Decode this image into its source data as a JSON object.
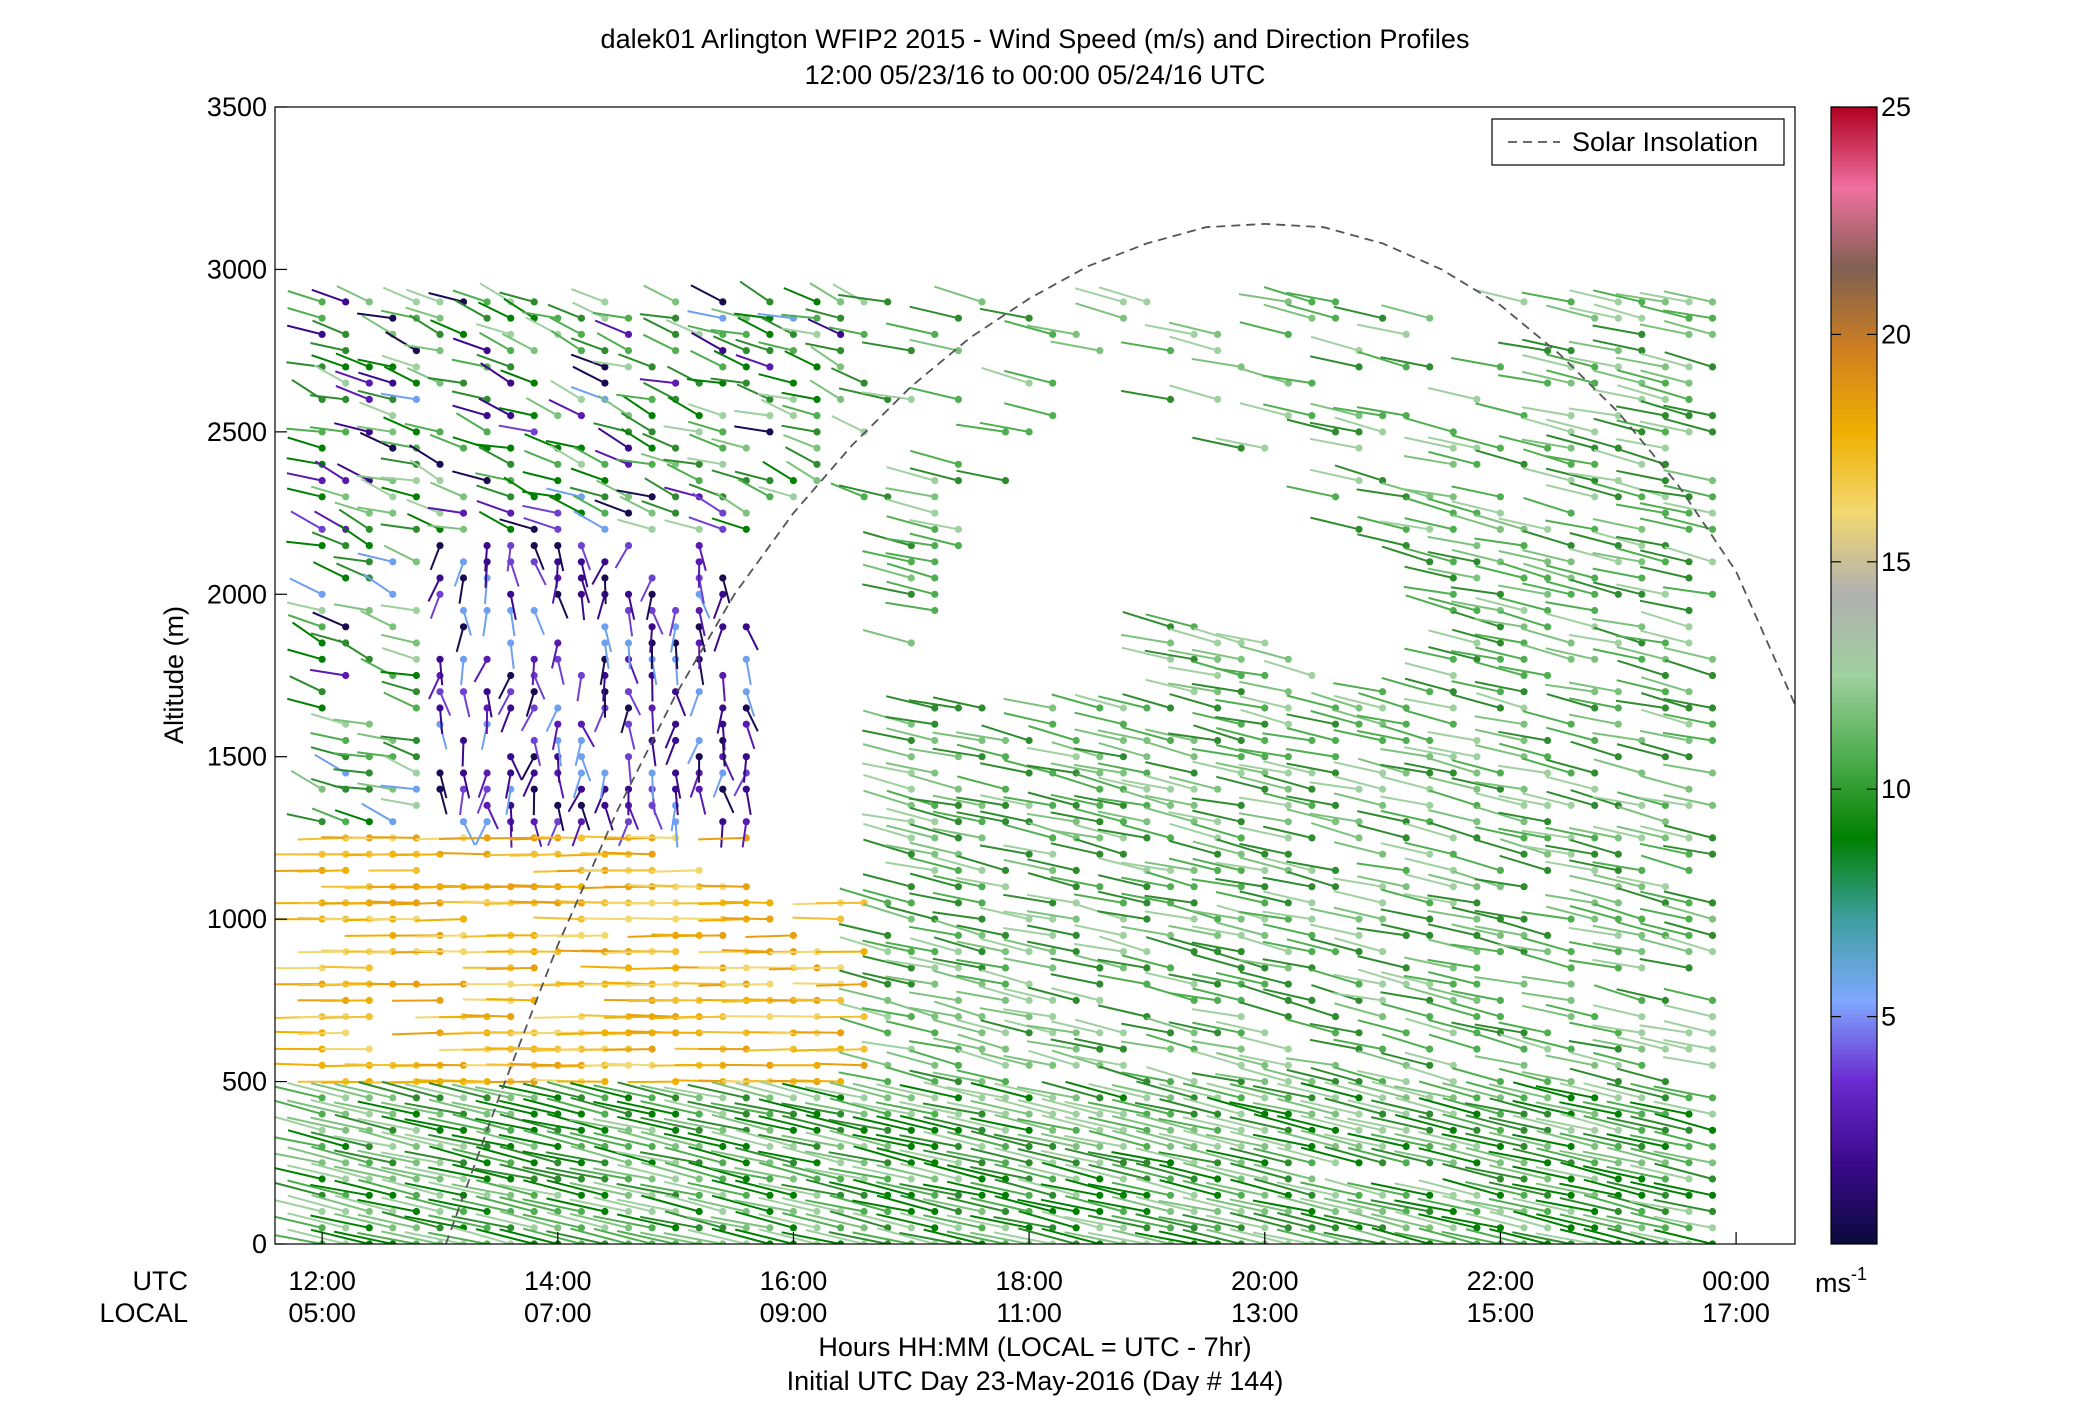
{
  "title": {
    "line1": "dalek01 Arlington WFIP2 2015 - Wind Speed (m/s) and Direction Profiles",
    "line2": "12:00 05/23/16 to 00:00 05/24/16  UTC"
  },
  "axes": {
    "ylabel": "Altitude (m)",
    "x_row_labels": [
      "UTC",
      "LOCAL"
    ],
    "xlabel_line1": "Hours HH:MM  (LOCAL = UTC - 7hr)",
    "xlabel_line2": "Initial UTC Day 23-May-2016 (Day # 144)",
    "colorbar_unit": "ms",
    "colorbar_unit_exp": "-1"
  },
  "legend": {
    "label": "Solar Insolation"
  },
  "chart_data": {
    "type": "scatter",
    "subtype": "wind-barb-profile",
    "x_range_hours_utc": [
      11.6,
      24.5
    ],
    "ylim": [
      0,
      3500
    ],
    "y_ticks": [
      0,
      500,
      1000,
      1500,
      2000,
      2500,
      3000,
      3500
    ],
    "y_tick_labels": [
      "0",
      "500",
      "1000",
      "1500",
      "2000",
      "2500",
      "3000",
      "3500"
    ],
    "x_ticks_utc": [
      12,
      14,
      16,
      18,
      20,
      22,
      24
    ],
    "x_tick_labels_utc": [
      "12:00",
      "14:00",
      "16:00",
      "18:00",
      "20:00",
      "22:00",
      "00:00"
    ],
    "x_tick_labels_local": [
      "05:00",
      "07:00",
      "09:00",
      "11:00",
      "13:00",
      "15:00",
      "17:00"
    ],
    "colorbar": {
      "range": [
        0,
        25
      ],
      "ticks": [
        5,
        10,
        15,
        20,
        25
      ],
      "tick_labels": [
        "5",
        "10",
        "15",
        "20",
        "25"
      ]
    },
    "grid": false,
    "legend_position": "top-right",
    "series": [
      {
        "name": "Solar Insolation",
        "style": "dashed",
        "color": "#555555",
        "points": [
          {
            "x": 13.05,
            "y": 0
          },
          {
            "x": 13.5,
            "y": 450
          },
          {
            "x": 14.0,
            "y": 920
          },
          {
            "x": 14.5,
            "y": 1330
          },
          {
            "x": 15.0,
            "y": 1690
          },
          {
            "x": 15.5,
            "y": 2000
          },
          {
            "x": 16.0,
            "y": 2250
          },
          {
            "x": 16.5,
            "y": 2460
          },
          {
            "x": 17.0,
            "y": 2640
          },
          {
            "x": 17.5,
            "y": 2790
          },
          {
            "x": 18.0,
            "y": 2910
          },
          {
            "x": 18.5,
            "y": 3010
          },
          {
            "x": 19.0,
            "y": 3080
          },
          {
            "x": 19.5,
            "y": 3130
          },
          {
            "x": 20.0,
            "y": 3140
          },
          {
            "x": 20.5,
            "y": 3130
          },
          {
            "x": 21.0,
            "y": 3080
          },
          {
            "x": 21.5,
            "y": 3000
          },
          {
            "x": 22.0,
            "y": 2890
          },
          {
            "x": 22.5,
            "y": 2740
          },
          {
            "x": 23.0,
            "y": 2560
          },
          {
            "x": 23.5,
            "y": 2340
          },
          {
            "x": 24.0,
            "y": 2070
          },
          {
            "x": 24.5,
            "y": 1660
          }
        ]
      }
    ],
    "wind_field_summary": [
      {
        "region": "0-500 m, 12:00-00:00 UTC",
        "speed_ms": 10,
        "color": "green"
      },
      {
        "region": "500-1300 m, 12:00-16:30 UTC",
        "speed_ms": 15,
        "color": "orange-yellow"
      },
      {
        "region": "1300-2200 m, 13:00-15:30 UTC",
        "speed_ms": 3,
        "color": "purple"
      },
      {
        "region": "1000-2200 m, 17:00-00:00 UTC",
        "speed_ms": 10,
        "color": "light green"
      },
      {
        "region": "2200-3100 m, 12:00-16:00 UTC",
        "speed_ms": 9,
        "color": "mixed green/purple"
      }
    ],
    "colors": {
      "colormap": [
        "#0a0a3c",
        "#3b0a8c",
        "#6a2ad0",
        "#7fa8ff",
        "#3e9f9f",
        "#008000",
        "#4fae4f",
        "#9fd09f",
        "#b0b0b0",
        "#f2d870",
        "#f0b000",
        "#d08020",
        "#806050",
        "#f070a0",
        "#b00020"
      ],
      "insolation_line": "#555555"
    }
  }
}
